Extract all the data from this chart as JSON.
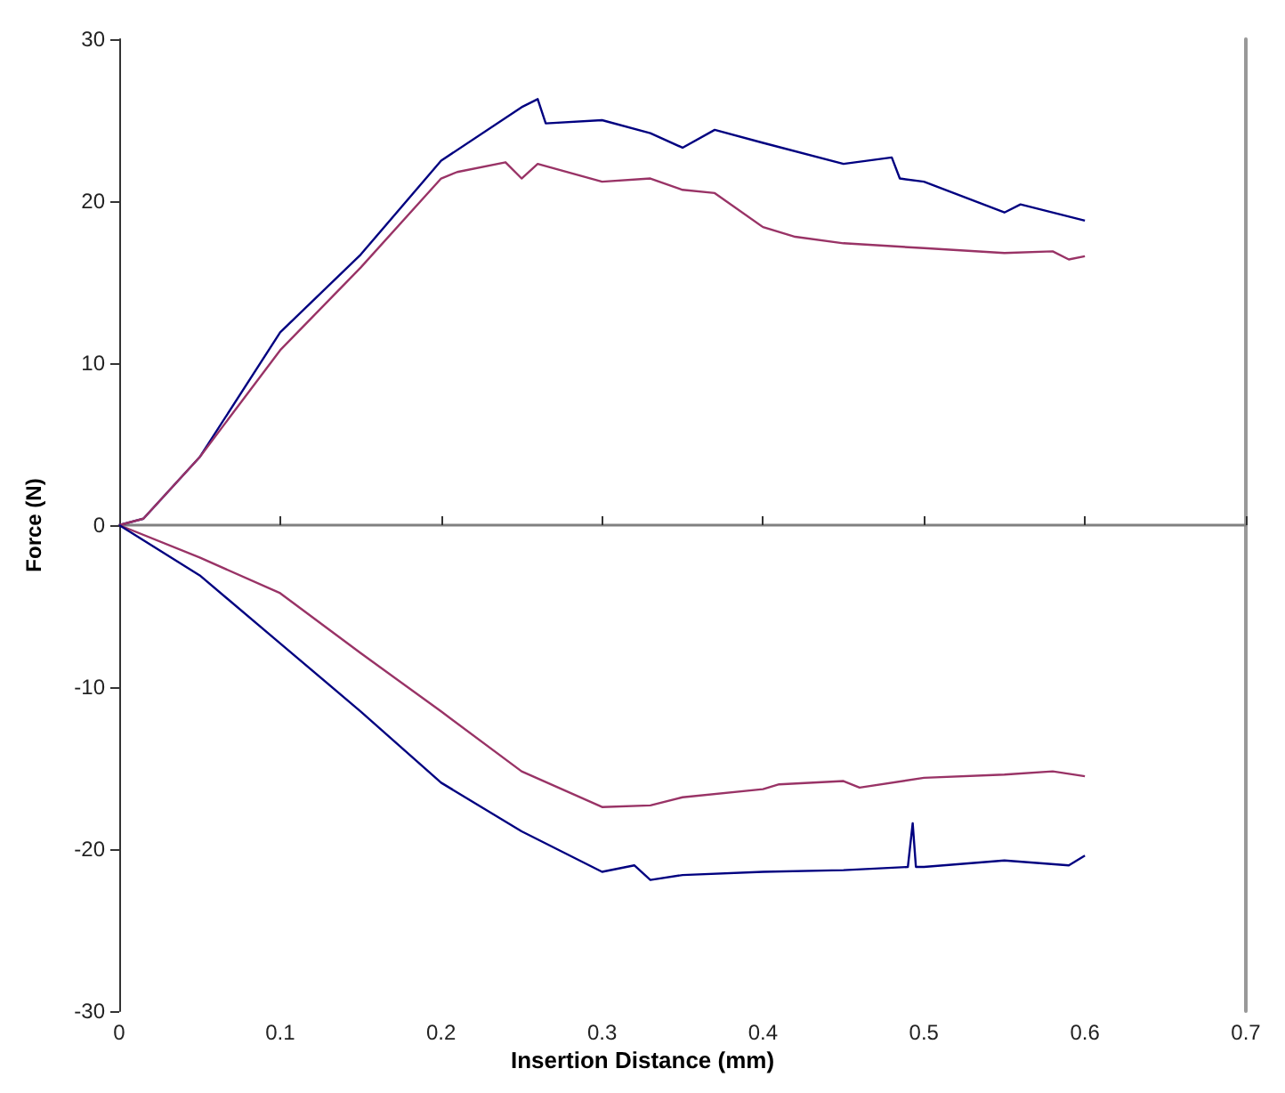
{
  "chart_data": {
    "type": "line",
    "xlabel": "Insertion Distance (mm)",
    "ylabel": "Force (N)",
    "xlim": [
      0,
      0.7
    ],
    "xticks": [
      0,
      0.1,
      0.2,
      0.3,
      0.4,
      0.5,
      0.6,
      0.7
    ],
    "ylim": [
      -30,
      30
    ],
    "yticks": [
      -30,
      -20,
      -10,
      0,
      10,
      20,
      30
    ],
    "marker": "none",
    "line_style": "solid",
    "series": [
      {
        "color": "#000080",
        "x": [
          0,
          0.015,
          0.05,
          0.1,
          0.15,
          0.2,
          0.25,
          0.26,
          0.265,
          0.3,
          0.33,
          0.35,
          0.37,
          0.4,
          0.45,
          0.48,
          0.485,
          0.5,
          0.55,
          0.56,
          0.6
        ],
        "values": [
          0,
          0.4,
          4.2,
          11.9,
          16.7,
          22.5,
          25.8,
          26.3,
          24.8,
          25.0,
          24.2,
          23.3,
          24.4,
          23.6,
          22.3,
          22.7,
          21.4,
          21.2,
          19.3,
          19.8,
          18.8
        ]
      },
      {
        "color": "#993366",
        "x": [
          0,
          0.015,
          0.05,
          0.1,
          0.15,
          0.2,
          0.21,
          0.24,
          0.25,
          0.26,
          0.3,
          0.33,
          0.35,
          0.37,
          0.4,
          0.42,
          0.45,
          0.5,
          0.55,
          0.58,
          0.59,
          0.6
        ],
        "values": [
          0,
          0.4,
          4.2,
          10.8,
          15.9,
          21.4,
          21.8,
          22.4,
          21.4,
          22.3,
          21.2,
          21.4,
          20.7,
          20.5,
          18.4,
          17.8,
          17.4,
          17.1,
          16.8,
          16.9,
          16.4,
          16.6
        ]
      },
      {
        "color": "#993366",
        "x": [
          0,
          0.05,
          0.1,
          0.15,
          0.2,
          0.25,
          0.3,
          0.33,
          0.35,
          0.4,
          0.41,
          0.45,
          0.46,
          0.5,
          0.55,
          0.58,
          0.6
        ],
        "values": [
          0,
          -2.0,
          -4.2,
          -7.9,
          -11.5,
          -15.2,
          -17.4,
          -17.3,
          -16.8,
          -16.3,
          -16.0,
          -15.8,
          -16.2,
          -15.6,
          -15.4,
          -15.2,
          -15.5
        ]
      },
      {
        "color": "#000080",
        "x": [
          0,
          0.05,
          0.1,
          0.15,
          0.2,
          0.25,
          0.3,
          0.32,
          0.33,
          0.35,
          0.4,
          0.45,
          0.49,
          0.493,
          0.495,
          0.5,
          0.55,
          0.59,
          0.6
        ],
        "values": [
          0,
          -3.1,
          -7.3,
          -11.5,
          -15.9,
          -18.9,
          -21.4,
          -21.0,
          -21.9,
          -21.6,
          -21.4,
          -21.3,
          -21.1,
          -18.4,
          -21.1,
          -21.1,
          -20.7,
          -21.0,
          -20.4
        ]
      }
    ]
  }
}
